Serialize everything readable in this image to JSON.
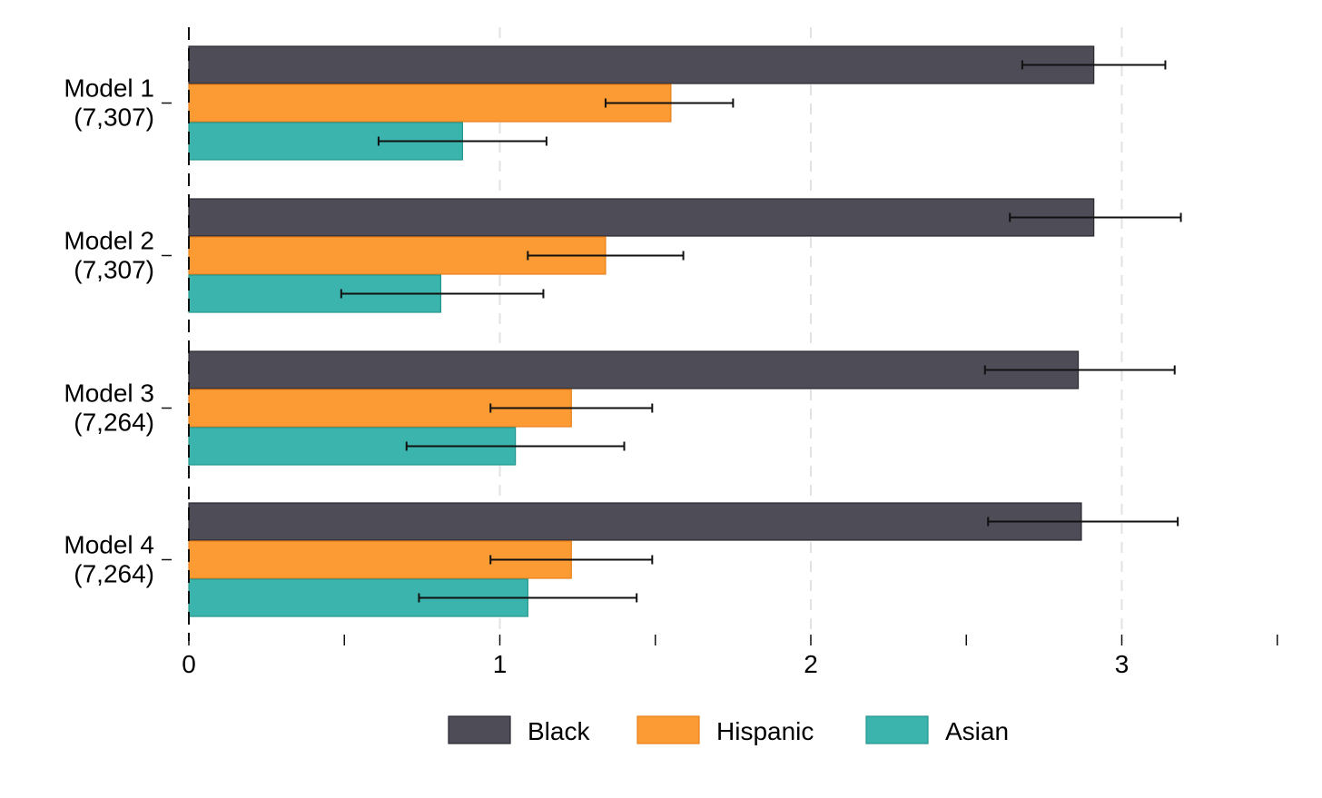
{
  "chart_data": {
    "type": "bar",
    "orientation": "horizontal",
    "title": "",
    "xlabel": "",
    "ylabel": "",
    "xlim": [
      0,
      3.5
    ],
    "x_ticks": [
      0,
      0.5,
      1,
      1.5,
      2,
      2.5,
      3,
      3.5
    ],
    "x_tick_labels": [
      {
        "value": 0,
        "label": "0"
      },
      {
        "value": 1,
        "label": "1"
      },
      {
        "value": 2,
        "label": "2"
      },
      {
        "value": 3,
        "label": "3"
      }
    ],
    "grid": {
      "vertical_dashed": true,
      "values": [
        1,
        2,
        3
      ]
    },
    "legend_position": "bottom",
    "categories": [
      {
        "name": "Model 1",
        "n": "(7,307)"
      },
      {
        "name": "Model 2",
        "n": "(7,307)"
      },
      {
        "name": "Model 3",
        "n": "(7,264)"
      },
      {
        "name": "Model 4",
        "n": "(7,264)"
      }
    ],
    "series": [
      {
        "name": "Black",
        "color": "#4d4c57",
        "stroke": "#2a2a30",
        "values": [
          2.91,
          2.91,
          2.86,
          2.87
        ],
        "ci_low": [
          2.68,
          2.64,
          2.56,
          2.57
        ],
        "ci_high": [
          3.14,
          3.19,
          3.17,
          3.18
        ]
      },
      {
        "name": "Hispanic",
        "color": "#fc9a34",
        "stroke": "#e8801a",
        "values": [
          1.55,
          1.34,
          1.23,
          1.23
        ],
        "ci_low": [
          1.34,
          1.09,
          0.97,
          0.97
        ],
        "ci_high": [
          1.75,
          1.59,
          1.49,
          1.49
        ]
      },
      {
        "name": "Asian",
        "color": "#3ab4ac",
        "stroke": "#24968e",
        "values": [
          0.88,
          0.81,
          1.05,
          1.09
        ],
        "ci_low": [
          0.61,
          0.49,
          0.7,
          0.74
        ],
        "ci_high": [
          1.15,
          1.14,
          1.4,
          1.44
        ]
      }
    ]
  }
}
